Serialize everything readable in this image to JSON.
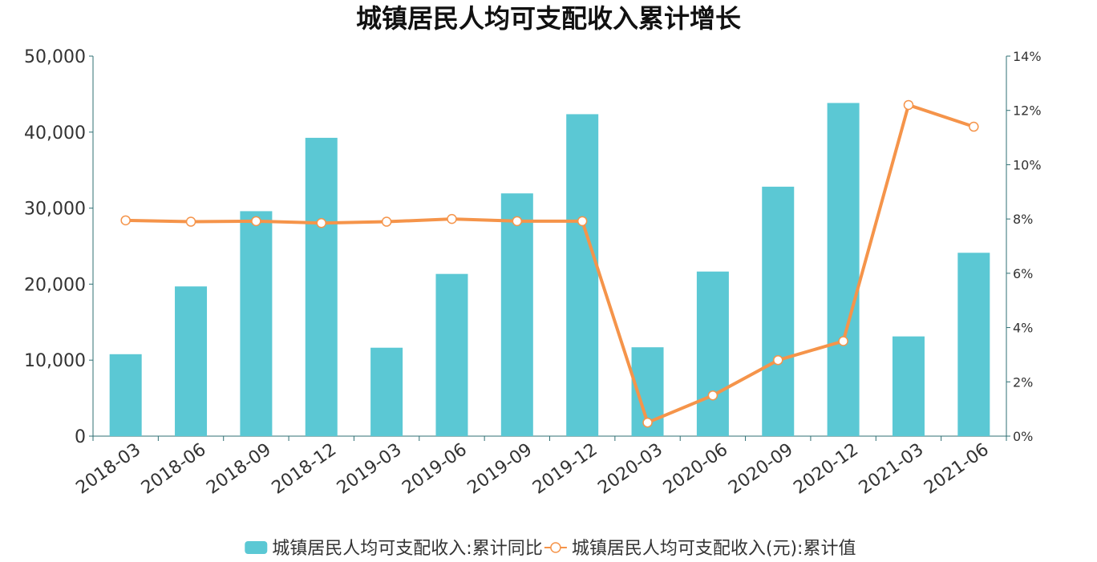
{
  "chart_data": {
    "type": "bar",
    "title": "城镇居民人均可支配收入累计增长",
    "categories": [
      "2018-03",
      "2018-06",
      "2018-09",
      "2018-12",
      "2019-03",
      "2019-06",
      "2019-09",
      "2019-12",
      "2020-03",
      "2020-06",
      "2020-09",
      "2020-12",
      "2021-03",
      "2021-06"
    ],
    "y_left": {
      "ticks": [
        "0",
        "10,000",
        "20,000",
        "30,000",
        "40,000",
        "50,000"
      ],
      "min": 0,
      "max": 50000
    },
    "y_right": {
      "ticks": [
        "0%",
        "2%",
        "4%",
        "6%",
        "8%",
        "10%",
        "12%",
        "14%"
      ],
      "min": 0,
      "max": 14
    },
    "series": [
      {
        "name": "城镇居民人均可支配收入:累计同比",
        "type": "bar",
        "axis": "left",
        "color": "#5bc8d4",
        "values": [
          10781,
          19697,
          29599,
          39251,
          11633,
          21342,
          31939,
          42359,
          11691,
          21655,
          32821,
          43834,
          13120,
          24125
        ]
      },
      {
        "name": "城镇居民人均可支配收入(元):累计值",
        "type": "line",
        "axis": "right",
        "color": "#f5944a",
        "values": [
          7.95,
          7.9,
          7.92,
          7.85,
          7.9,
          8.0,
          7.92,
          7.92,
          0.5,
          1.5,
          2.8,
          3.5,
          12.2,
          11.4
        ]
      }
    ],
    "legend": "bottom-center",
    "grid": false
  }
}
